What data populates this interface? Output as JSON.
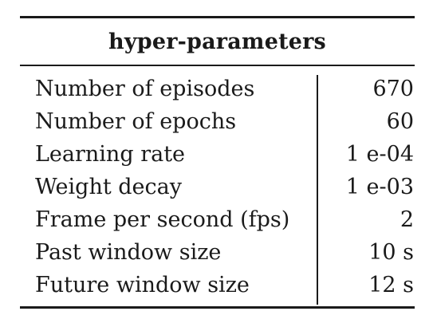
{
  "table": {
    "header": "hyper-parameters",
    "rows": [
      {
        "param": "Number of episodes",
        "value": "670"
      },
      {
        "param": "Number of epochs",
        "value": "60"
      },
      {
        "param": "Learning rate",
        "value": "1 e-04"
      },
      {
        "param": "Weight decay",
        "value": "1 e-03"
      },
      {
        "param": "Frame per second (fps)",
        "value": "2"
      },
      {
        "param": "Past window size",
        "value": "10 s"
      },
      {
        "param": "Future window size",
        "value": "12 s"
      }
    ]
  }
}
